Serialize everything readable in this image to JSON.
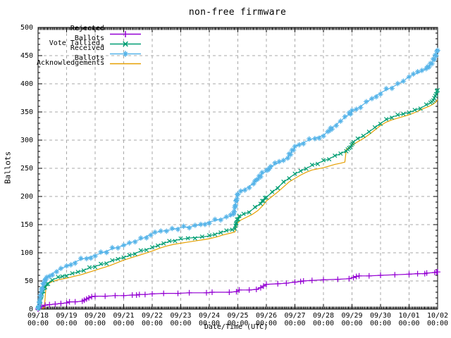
{
  "chart_data": {
    "type": "line",
    "title": "non-free firmware",
    "xlabel": "Date/Time (UTC)",
    "ylabel": "Ballots",
    "ylim": [
      0,
      500
    ],
    "y_tick_step": 50,
    "grid": true,
    "legend_position": "top-left",
    "background": "#ffffff",
    "grid_color": "#a8a8a8",
    "border_color": "#000000",
    "y_ticklabels": [
      "0",
      "50",
      "100",
      "150",
      "200",
      "250",
      "300",
      "350",
      "400",
      "450",
      "500"
    ],
    "x_ticklabels": [
      {
        "date": "09/18",
        "time": "00:00"
      },
      {
        "date": "09/19",
        "time": "00:00"
      },
      {
        "date": "09/20",
        "time": "00:00"
      },
      {
        "date": "09/21",
        "time": "00:00"
      },
      {
        "date": "09/22",
        "time": "00:00"
      },
      {
        "date": "09/23",
        "time": "00:00"
      },
      {
        "date": "09/24",
        "time": "00:00"
      },
      {
        "date": "09/25",
        "time": "00:00"
      },
      {
        "date": "09/26",
        "time": "00:00"
      },
      {
        "date": "09/27",
        "time": "00:00"
      },
      {
        "date": "09/28",
        "time": "00:00"
      },
      {
        "date": "09/29",
        "time": "00:00"
      },
      {
        "date": "09/30",
        "time": "00:00"
      },
      {
        "date": "10/01",
        "time": "00:00"
      },
      {
        "date": "10/02",
        "time": "00:00"
      }
    ],
    "x_axis_note": "x values below are days after 09/18 00:00 UTC",
    "draw_order": [
      3,
      0,
      1,
      2
    ],
    "series": [
      {
        "name": "Rejected Ballots",
        "color": "#9400D3",
        "marker": "plus",
        "points": [
          [
            0,
            0
          ],
          [
            0.05,
            2
          ],
          [
            0.12,
            5
          ],
          [
            0.25,
            7
          ],
          [
            0.4,
            8
          ],
          [
            0.6,
            9
          ],
          [
            0.8,
            10
          ],
          [
            1.0,
            11
          ],
          [
            1.1,
            13
          ],
          [
            1.3,
            13
          ],
          [
            1.55,
            14
          ],
          [
            1.62,
            16
          ],
          [
            1.7,
            18
          ],
          [
            1.78,
            20
          ],
          [
            1.88,
            22
          ],
          [
            2.0,
            23
          ],
          [
            2.35,
            23
          ],
          [
            2.7,
            24
          ],
          [
            3.0,
            24
          ],
          [
            3.3,
            25
          ],
          [
            3.45,
            25
          ],
          [
            3.55,
            26
          ],
          [
            3.75,
            26
          ],
          [
            4.0,
            27
          ],
          [
            4.4,
            28
          ],
          [
            4.9,
            28
          ],
          [
            5.3,
            29
          ],
          [
            5.9,
            29
          ],
          [
            6.1,
            30
          ],
          [
            6.7,
            30
          ],
          [
            6.95,
            31
          ],
          [
            7.05,
            34
          ],
          [
            7.4,
            34
          ],
          [
            7.65,
            35
          ],
          [
            7.8,
            38
          ],
          [
            7.9,
            41
          ],
          [
            8.0,
            44
          ],
          [
            8.4,
            45
          ],
          [
            8.7,
            46
          ],
          [
            9.0,
            48
          ],
          [
            9.2,
            49
          ],
          [
            9.3,
            50
          ],
          [
            9.6,
            51
          ],
          [
            10.0,
            52
          ],
          [
            10.5,
            53
          ],
          [
            10.9,
            54
          ],
          [
            11.05,
            56
          ],
          [
            11.15,
            58
          ],
          [
            11.25,
            59
          ],
          [
            11.6,
            59
          ],
          [
            12.0,
            60
          ],
          [
            12.5,
            61
          ],
          [
            13.0,
            62
          ],
          [
            13.3,
            63
          ],
          [
            13.55,
            63
          ],
          [
            13.62,
            64
          ],
          [
            13.9,
            65
          ],
          [
            13.97,
            66
          ],
          [
            14.0,
            66
          ]
        ]
      },
      {
        "name": "Vote Tallied,",
        "color": "#009E73",
        "marker": "cross",
        "points": [
          [
            0,
            0
          ],
          [
            0.05,
            8
          ],
          [
            0.1,
            20
          ],
          [
            0.15,
            30
          ],
          [
            0.25,
            40
          ],
          [
            0.35,
            46
          ],
          [
            0.5,
            52
          ],
          [
            0.7,
            56
          ],
          [
            0.85,
            58
          ],
          [
            1.0,
            60
          ],
          [
            1.2,
            63
          ],
          [
            1.4,
            66
          ],
          [
            1.6,
            69
          ],
          [
            1.8,
            73
          ],
          [
            2.0,
            76
          ],
          [
            2.2,
            79
          ],
          [
            2.4,
            82
          ],
          [
            2.6,
            86
          ],
          [
            2.8,
            89
          ],
          [
            3.0,
            92
          ],
          [
            3.2,
            95
          ],
          [
            3.4,
            99
          ],
          [
            3.6,
            103
          ],
          [
            3.8,
            106
          ],
          [
            4.0,
            109
          ],
          [
            4.2,
            113
          ],
          [
            4.4,
            117
          ],
          [
            4.6,
            120
          ],
          [
            4.8,
            122
          ],
          [
            5.0,
            124
          ],
          [
            5.25,
            126
          ],
          [
            5.5,
            127
          ],
          [
            5.75,
            128
          ],
          [
            6.0,
            130
          ],
          [
            6.2,
            133
          ],
          [
            6.4,
            136
          ],
          [
            6.6,
            139
          ],
          [
            6.8,
            142
          ],
          [
            6.9,
            144
          ],
          [
            6.97,
            158
          ],
          [
            7.05,
            164
          ],
          [
            7.2,
            168
          ],
          [
            7.4,
            173
          ],
          [
            7.6,
            180
          ],
          [
            7.8,
            188
          ],
          [
            8.0,
            199
          ],
          [
            8.2,
            207
          ],
          [
            8.4,
            216
          ],
          [
            8.6,
            225
          ],
          [
            8.8,
            233
          ],
          [
            9.0,
            240
          ],
          [
            9.2,
            245
          ],
          [
            9.4,
            250
          ],
          [
            9.6,
            255
          ],
          [
            9.8,
            259
          ],
          [
            10.0,
            263
          ],
          [
            10.2,
            267
          ],
          [
            10.4,
            272
          ],
          [
            10.6,
            276
          ],
          [
            10.8,
            281
          ],
          [
            10.95,
            288
          ],
          [
            11.05,
            297
          ],
          [
            11.2,
            302
          ],
          [
            11.4,
            308
          ],
          [
            11.6,
            315
          ],
          [
            11.8,
            322
          ],
          [
            12.0,
            330
          ],
          [
            12.2,
            336
          ],
          [
            12.4,
            341
          ],
          [
            12.6,
            344
          ],
          [
            12.8,
            347
          ],
          [
            13.0,
            349
          ],
          [
            13.2,
            353
          ],
          [
            13.4,
            357
          ],
          [
            13.6,
            362
          ],
          [
            13.75,
            366
          ],
          [
            13.85,
            371
          ],
          [
            13.95,
            382
          ],
          [
            14.0,
            390
          ]
        ]
      },
      {
        "name": "Received Ballots",
        "color": "#56B4E9",
        "marker": "asterisk",
        "points": [
          [
            0,
            0
          ],
          [
            0.04,
            10
          ],
          [
            0.08,
            22
          ],
          [
            0.13,
            35
          ],
          [
            0.2,
            47
          ],
          [
            0.3,
            56
          ],
          [
            0.4,
            60
          ],
          [
            0.5,
            63
          ],
          [
            0.65,
            68
          ],
          [
            0.8,
            72
          ],
          [
            1.0,
            76
          ],
          [
            1.15,
            80
          ],
          [
            1.3,
            84
          ],
          [
            1.5,
            88
          ],
          [
            1.7,
            91
          ],
          [
            1.85,
            93
          ],
          [
            2.0,
            96
          ],
          [
            2.2,
            99
          ],
          [
            2.4,
            103
          ],
          [
            2.6,
            107
          ],
          [
            2.8,
            110
          ],
          [
            3.0,
            113
          ],
          [
            3.2,
            117
          ],
          [
            3.4,
            121
          ],
          [
            3.6,
            124
          ],
          [
            3.8,
            129
          ],
          [
            3.95,
            133
          ],
          [
            4.1,
            136
          ],
          [
            4.3,
            138
          ],
          [
            4.5,
            140
          ],
          [
            4.7,
            141
          ],
          [
            4.9,
            144
          ],
          [
            5.1,
            145
          ],
          [
            5.3,
            146
          ],
          [
            5.5,
            148
          ],
          [
            5.7,
            150
          ],
          [
            5.85,
            152
          ],
          [
            6.0,
            155
          ],
          [
            6.2,
            157
          ],
          [
            6.4,
            160
          ],
          [
            6.6,
            163
          ],
          [
            6.75,
            165
          ],
          [
            6.85,
            168
          ],
          [
            6.92,
            186
          ],
          [
            7.0,
            205
          ],
          [
            7.1,
            209
          ],
          [
            7.25,
            213
          ],
          [
            7.4,
            218
          ],
          [
            7.55,
            224
          ],
          [
            7.7,
            232
          ],
          [
            7.85,
            240
          ],
          [
            8.0,
            245
          ],
          [
            8.15,
            252
          ],
          [
            8.3,
            257
          ],
          [
            8.45,
            260
          ],
          [
            8.6,
            264
          ],
          [
            8.75,
            270
          ],
          [
            8.9,
            280
          ],
          [
            9.0,
            288
          ],
          [
            9.15,
            293
          ],
          [
            9.3,
            296
          ],
          [
            9.5,
            300
          ],
          [
            9.7,
            304
          ],
          [
            9.85,
            306
          ],
          [
            10.0,
            309
          ],
          [
            10.15,
            315
          ],
          [
            10.3,
            322
          ],
          [
            10.45,
            328
          ],
          [
            10.6,
            334
          ],
          [
            10.75,
            340
          ],
          [
            10.9,
            346
          ],
          [
            11.0,
            351
          ],
          [
            11.15,
            355
          ],
          [
            11.3,
            360
          ],
          [
            11.5,
            367
          ],
          [
            11.7,
            374
          ],
          [
            11.85,
            379
          ],
          [
            12.0,
            384
          ],
          [
            12.2,
            389
          ],
          [
            12.4,
            394
          ],
          [
            12.6,
            399
          ],
          [
            12.8,
            405
          ],
          [
            13.0,
            413
          ],
          [
            13.15,
            416
          ],
          [
            13.3,
            419
          ],
          [
            13.45,
            422
          ],
          [
            13.6,
            427
          ],
          [
            13.75,
            434
          ],
          [
            13.85,
            442
          ],
          [
            13.95,
            452
          ],
          [
            14.0,
            460
          ]
        ]
      },
      {
        "name": "Acknowledgements",
        "color": "#E69F00",
        "marker": "none",
        "points": [
          [
            0,
            0
          ],
          [
            0.22,
            2
          ],
          [
            0.28,
            40
          ],
          [
            0.35,
            45
          ],
          [
            0.5,
            49
          ],
          [
            0.7,
            52
          ],
          [
            1.0,
            55
          ],
          [
            1.25,
            58
          ],
          [
            1.5,
            61
          ],
          [
            1.75,
            65
          ],
          [
            2.0,
            69
          ],
          [
            2.25,
            73
          ],
          [
            2.5,
            77
          ],
          [
            2.75,
            82
          ],
          [
            3.0,
            87
          ],
          [
            3.25,
            91
          ],
          [
            3.5,
            95
          ],
          [
            3.75,
            99
          ],
          [
            4.0,
            103
          ],
          [
            4.25,
            108
          ],
          [
            4.5,
            112
          ],
          [
            4.75,
            115
          ],
          [
            5.0,
            117
          ],
          [
            5.25,
            119
          ],
          [
            5.5,
            121
          ],
          [
            5.75,
            123
          ],
          [
            6.0,
            125
          ],
          [
            6.25,
            128
          ],
          [
            6.5,
            132
          ],
          [
            6.75,
            135
          ],
          [
            6.9,
            137
          ],
          [
            6.97,
            152
          ],
          [
            7.1,
            158
          ],
          [
            7.3,
            163
          ],
          [
            7.5,
            168
          ],
          [
            7.7,
            175
          ],
          [
            7.9,
            185
          ],
          [
            8.0,
            192
          ],
          [
            8.2,
            200
          ],
          [
            8.4,
            208
          ],
          [
            8.6,
            217
          ],
          [
            8.8,
            226
          ],
          [
            9.0,
            232
          ],
          [
            9.2,
            238
          ],
          [
            9.4,
            243
          ],
          [
            9.6,
            247
          ],
          [
            9.8,
            249
          ],
          [
            10.0,
            251
          ],
          [
            10.2,
            254
          ],
          [
            10.4,
            257
          ],
          [
            10.6,
            259
          ],
          [
            10.75,
            261
          ],
          [
            10.8,
            283
          ],
          [
            11.0,
            291
          ],
          [
            11.2,
            297
          ],
          [
            11.4,
            303
          ],
          [
            11.6,
            310
          ],
          [
            11.8,
            318
          ],
          [
            12.0,
            326
          ],
          [
            12.2,
            332
          ],
          [
            12.4,
            336
          ],
          [
            12.6,
            339
          ],
          [
            12.8,
            342
          ],
          [
            13.0,
            345
          ],
          [
            13.25,
            350
          ],
          [
            13.5,
            356
          ],
          [
            13.7,
            360
          ],
          [
            13.85,
            364
          ],
          [
            13.95,
            368
          ],
          [
            14.0,
            372
          ]
        ]
      }
    ]
  }
}
